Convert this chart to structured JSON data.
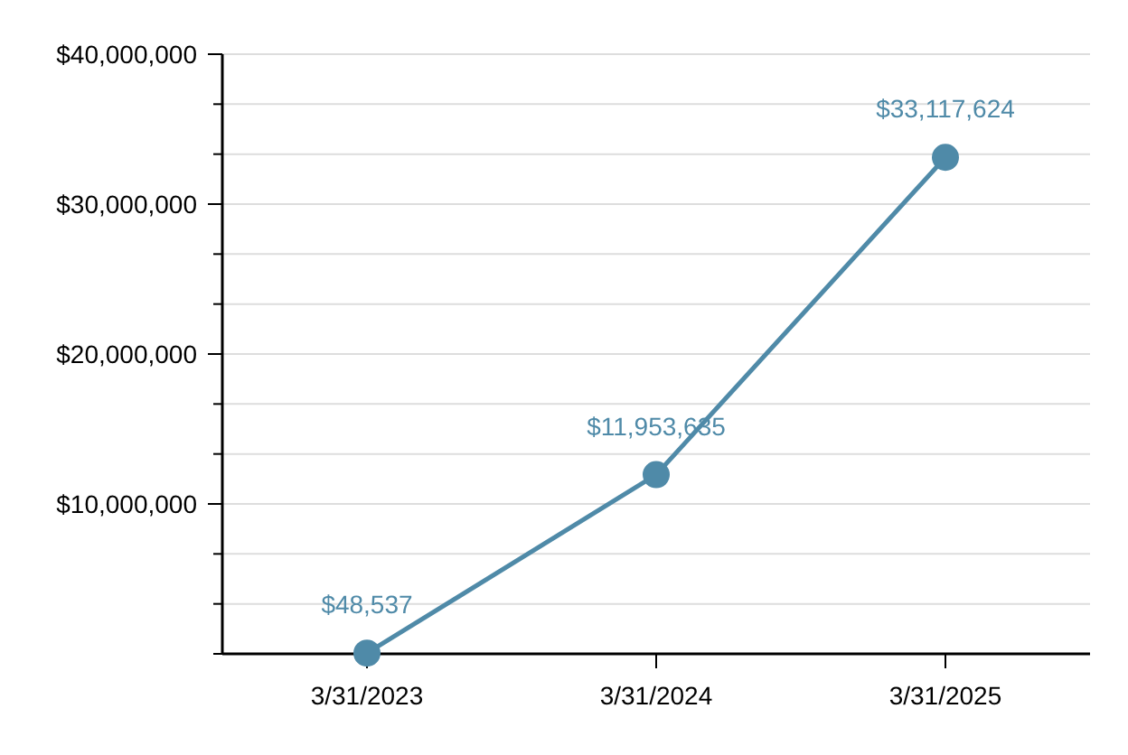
{
  "chart_data": {
    "type": "line",
    "categories": [
      "3/31/2023",
      "3/31/2024",
      "3/31/2025"
    ],
    "series": [
      {
        "color": "#4f8aa8",
        "values": [
          48537,
          11953635,
          33117624
        ]
      }
    ],
    "value_labels": [
      "$48,537",
      "$11,953,635",
      "$33,117,624"
    ],
    "ylim": [
      0,
      40000000
    ],
    "yticks": [
      {
        "value": 0,
        "label": null
      },
      {
        "value": 3333333,
        "label": null
      },
      {
        "value": 6666667,
        "label": null
      },
      {
        "value": 10000000,
        "label": "$10,000,000"
      },
      {
        "value": 13333333,
        "label": null
      },
      {
        "value": 16666667,
        "label": null
      },
      {
        "value": 20000000,
        "label": "$20,000,000"
      },
      {
        "value": 23333333,
        "label": null
      },
      {
        "value": 26666667,
        "label": null
      },
      {
        "value": 30000000,
        "label": "$30,000,000"
      },
      {
        "value": 33333333,
        "label": null
      },
      {
        "value": 36666667,
        "label": null
      },
      {
        "value": 40000000,
        "label": "$40,000,000"
      }
    ],
    "grid": "y",
    "marker": "circle",
    "line_style": "solid"
  }
}
